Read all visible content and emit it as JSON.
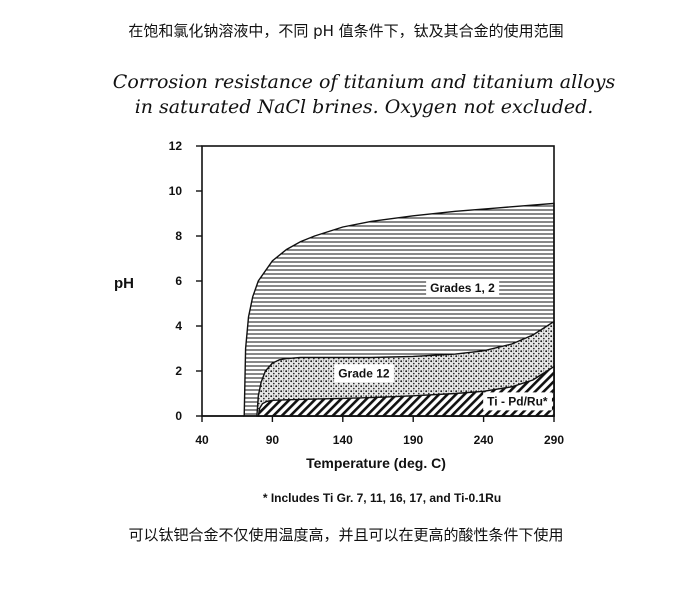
{
  "caption_top": "在饱和氯化钠溶液中，不同 pH 值条件下，钛及其合金的使用范围",
  "caption_bottom": "可以钛钯合金不仅使用温度高，并且可以在更高的酸性条件下使用",
  "chart_data": {
    "type": "area",
    "title": [
      "Corrosion resistance of titanium and titanium alloys",
      "in saturated NaCl brines.  Oxygen not excluded."
    ],
    "xlabel": "Temperature (deg. C)",
    "ylabel": "pH",
    "xlim": [
      40,
      290
    ],
    "ylim": [
      0,
      12
    ],
    "xticks": [
      "40",
      "90",
      "140",
      "190",
      "240",
      "290"
    ],
    "yticks": [
      "0",
      "2",
      "4",
      "6",
      "8",
      "10",
      "12"
    ],
    "grid": false,
    "footnote": "* Includes Ti Gr. 7, 11, 16, 17, and Ti-0.1Ru",
    "series": [
      {
        "name": "Grades 1, 2",
        "pattern": "horizontal-lines",
        "x": [
          70,
          71,
          73,
          76,
          80,
          90,
          100,
          110,
          120,
          140,
          160,
          190,
          220,
          250,
          290
        ],
        "y": [
          0,
          3.0,
          4.4,
          5.3,
          6.0,
          6.9,
          7.4,
          7.75,
          8.0,
          8.4,
          8.65,
          8.9,
          9.1,
          9.25,
          9.45
        ]
      },
      {
        "name": "Grade 12",
        "pattern": "stipple",
        "x": [
          79,
          80,
          82,
          85,
          90,
          95,
          100,
          110,
          120,
          140,
          160,
          190,
          220,
          240,
          260,
          275,
          290
        ],
        "y": [
          0,
          0.9,
          1.5,
          2.0,
          2.35,
          2.5,
          2.55,
          2.6,
          2.6,
          2.6,
          2.6,
          2.65,
          2.75,
          2.9,
          3.2,
          3.6,
          4.2
        ]
      },
      {
        "name": "Ti - Pd/Ru*",
        "pattern": "diagonal-hatch",
        "x": [
          80,
          81,
          83,
          86,
          90,
          100,
          120,
          140,
          160,
          190,
          220,
          240,
          260,
          275,
          290
        ],
        "y": [
          0,
          0.35,
          0.55,
          0.65,
          0.7,
          0.72,
          0.75,
          0.78,
          0.82,
          0.9,
          1.0,
          1.1,
          1.3,
          1.6,
          2.2
        ]
      }
    ],
    "series_labels": [
      {
        "text": "Grades 1, 2",
        "x": 225,
        "y": 5.7
      },
      {
        "text": "Grade 12",
        "x": 155,
        "y": 1.9
      },
      {
        "text": "Ti - Pd/Ru*",
        "x": 264,
        "y": 0.65
      }
    ]
  }
}
